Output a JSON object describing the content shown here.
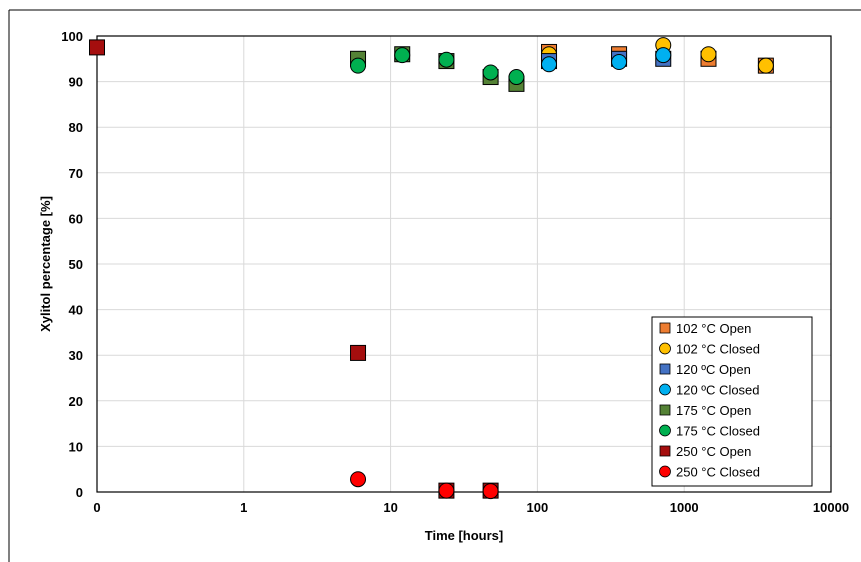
{
  "chart_data": {
    "type": "scatter",
    "title": "",
    "xlabel": "Time [hours]",
    "ylabel": "Xylitol percentage [%]",
    "x_scale": "log",
    "x_ticks": [
      "0",
      "1",
      "10",
      "100",
      "1000",
      "10000"
    ],
    "y_ticks": [
      "0",
      "10",
      "20",
      "30",
      "40",
      "50",
      "60",
      "70",
      "80",
      "90",
      "100"
    ],
    "ylim": [
      0,
      100
    ],
    "grid": "vertical and horizontal major gridlines",
    "legend_position": "bottom-right",
    "series": [
      {
        "name": "102 °C Open",
        "marker": "square",
        "color": "#ED7D31",
        "points": [
          [
            120,
            96.5
          ],
          [
            360,
            96.0
          ],
          [
            1464,
            95.0
          ],
          [
            3600,
            93.5
          ]
        ]
      },
      {
        "name": "102 °C Closed",
        "marker": "circle",
        "color": "#FFC000",
        "points": [
          [
            120,
            96.0
          ],
          [
            720,
            98.0
          ],
          [
            1464,
            96.0
          ],
          [
            3600,
            93.5
          ]
        ]
      },
      {
        "name": "120 ºC Open",
        "marker": "square",
        "color": "#4472C4",
        "points": [
          [
            120,
            94.5
          ],
          [
            360,
            95.0
          ],
          [
            720,
            95.0
          ]
        ]
      },
      {
        "name": "120 ºC Closed",
        "marker": "circle",
        "color": "#00B0F0",
        "points": [
          [
            120,
            93.8
          ],
          [
            360,
            94.3
          ],
          [
            720,
            95.8
          ]
        ]
      },
      {
        "name": "175 °C Open",
        "marker": "square",
        "color": "#548235",
        "points": [
          [
            6,
            95.0
          ],
          [
            12,
            96.0
          ],
          [
            24,
            94.5
          ],
          [
            48,
            91.0
          ],
          [
            72,
            89.5
          ]
        ]
      },
      {
        "name": "175 °C Closed",
        "marker": "circle",
        "color": "#00B050",
        "points": [
          [
            6,
            93.5
          ],
          [
            12,
            95.8
          ],
          [
            24,
            94.8
          ],
          [
            48,
            92.0
          ],
          [
            72,
            91.0
          ]
        ]
      },
      {
        "name": "250 °C Open",
        "marker": "square",
        "color": "#A50E0E",
        "points": [
          [
            0,
            97.5
          ],
          [
            6,
            30.5
          ],
          [
            24,
            0.3
          ],
          [
            48,
            0.3
          ]
        ]
      },
      {
        "name": "250 °C Closed",
        "marker": "circle",
        "color": "#FF0000",
        "points": [
          [
            6,
            2.8
          ],
          [
            24,
            0.3
          ],
          [
            48,
            0.2
          ]
        ]
      }
    ]
  }
}
